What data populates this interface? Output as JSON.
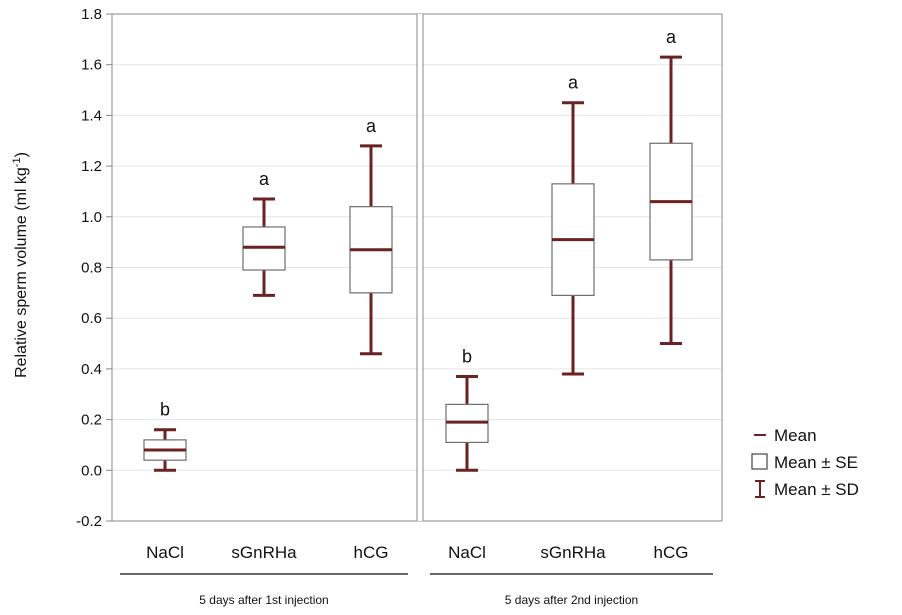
{
  "chart_data": {
    "type": "box",
    "ylabel": "Relative sperm volume (ml kg",
    "ylabel_sup": "-1",
    "ylabel_close": ")",
    "ylim": [
      -0.2,
      1.8
    ],
    "yticks": [
      "-0.2",
      "0.0",
      "0.2",
      "0.4",
      "0.6",
      "0.8",
      "1.0",
      "1.2",
      "1.4",
      "1.6",
      "1.8"
    ],
    "grid": true,
    "box_color": "#6b2222",
    "panels": [
      {
        "label": "5 days after 1st injection",
        "categories": [
          {
            "name": "NaCl",
            "mean": 0.08,
            "se_low": 0.04,
            "se_high": 0.12,
            "sd_low": 0.0,
            "sd_high": 0.16,
            "letter": "b"
          },
          {
            "name": "sGnRHa",
            "mean": 0.88,
            "se_low": 0.79,
            "se_high": 0.96,
            "sd_low": 0.69,
            "sd_high": 1.07,
            "letter": "a"
          },
          {
            "name": "hCG",
            "mean": 0.87,
            "se_low": 0.7,
            "se_high": 1.04,
            "sd_low": 0.46,
            "sd_high": 1.28,
            "letter": "a"
          }
        ]
      },
      {
        "label": "5 days after 2nd injection",
        "categories": [
          {
            "name": "NaCl",
            "mean": 0.19,
            "se_low": 0.11,
            "se_high": 0.26,
            "sd_low": 0.0,
            "sd_high": 0.37,
            "letter": "b"
          },
          {
            "name": "sGnRHa",
            "mean": 0.91,
            "se_low": 0.69,
            "se_high": 1.13,
            "sd_low": 0.38,
            "sd_high": 1.45,
            "letter": "a"
          },
          {
            "name": "hCG",
            "mean": 1.06,
            "se_low": 0.83,
            "se_high": 1.29,
            "sd_low": 0.5,
            "sd_high": 1.63,
            "letter": "a"
          }
        ]
      }
    ],
    "legend": {
      "position": "right",
      "items": [
        {
          "symbol": "mean",
          "label": "Mean"
        },
        {
          "symbol": "box",
          "label": "Mean ± SE"
        },
        {
          "symbol": "whisker",
          "label": "Mean ± SD"
        }
      ]
    }
  }
}
